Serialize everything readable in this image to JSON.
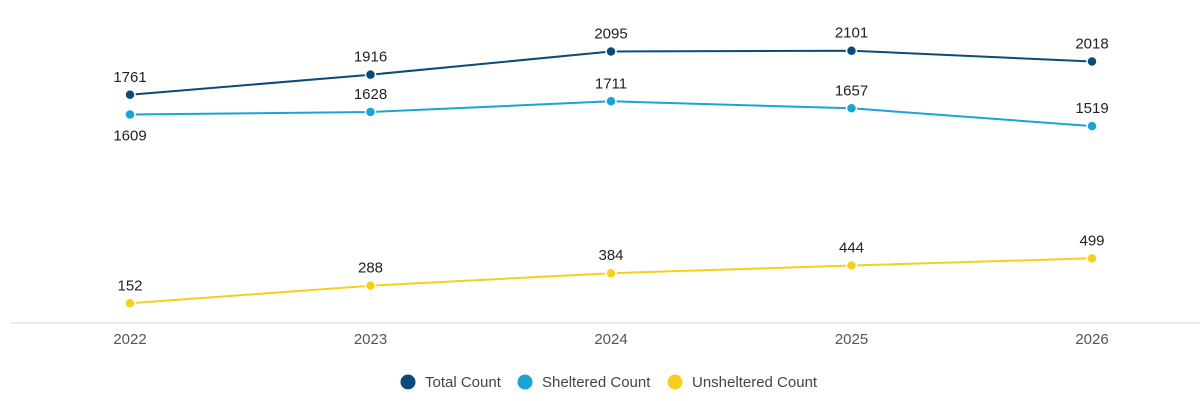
{
  "chart_data": {
    "type": "line",
    "title": "",
    "xlabel": "",
    "ylabel": "",
    "x": [
      "2022",
      "2023",
      "2024",
      "2025",
      "2026"
    ],
    "ylim": [
      0,
      2500
    ],
    "grid": false,
    "legend_position": "bottom-center",
    "series": [
      {
        "name": "Total Count",
        "color": "#0d4a7a",
        "values": [
          1761,
          1916,
          2095,
          2101,
          2018
        ],
        "label_side": [
          "above",
          "above",
          "above",
          "above",
          "above"
        ]
      },
      {
        "name": "Sheltered Count",
        "color": "#1aa3d4",
        "values": [
          1609,
          1628,
          1711,
          1657,
          1519
        ],
        "label_side": [
          "below",
          "above",
          "above",
          "above",
          "above"
        ]
      },
      {
        "name": "Unsheltered Count",
        "color": "#f5cf1b",
        "values": [
          152,
          288,
          384,
          444,
          499
        ],
        "label_side": [
          "above",
          "above",
          "above",
          "above",
          "above"
        ]
      }
    ]
  }
}
